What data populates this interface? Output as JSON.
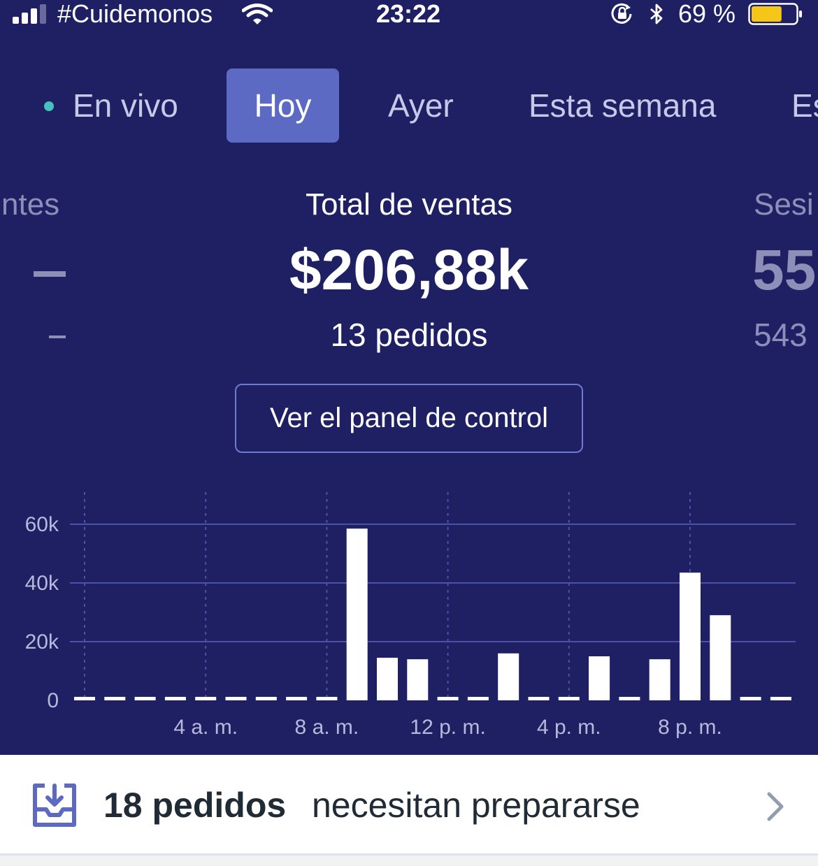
{
  "status_bar": {
    "carrier": "#Cuidemonos",
    "time": "23:22",
    "battery_percent": "69 %",
    "battery_level": 0.69,
    "signal_bars": 3,
    "icons": [
      "signal-icon",
      "wifi-icon",
      "orientation-lock-icon",
      "bluetooth-icon",
      "battery-icon"
    ],
    "colors": {
      "battery_fill": "#f5c518"
    }
  },
  "tabs": [
    {
      "label": "En vivo",
      "active": false
    },
    {
      "label": "Hoy",
      "active": true
    },
    {
      "label": "Ayer",
      "active": false
    },
    {
      "label": "Esta semana",
      "active": false
    },
    {
      "label": "Es",
      "active": false
    }
  ],
  "metrics": {
    "left": {
      "label": "ntes",
      "value": "–",
      "sub": "–"
    },
    "center": {
      "label": "Total de ventas",
      "value": "$206,88k",
      "sub": "13 pedidos"
    },
    "right": {
      "label": "Sesi",
      "value": "55",
      "sub": "543"
    }
  },
  "dashboard_button": {
    "label": "Ver el panel de control"
  },
  "chart_data": {
    "type": "bar",
    "categories": [
      "0",
      "1",
      "2",
      "3",
      "4",
      "5",
      "6",
      "7",
      "8",
      "9",
      "10",
      "11",
      "12",
      "13",
      "14",
      "15",
      "16",
      "17",
      "18",
      "19",
      "20",
      "21",
      "22",
      "23"
    ],
    "values": [
      0,
      0,
      0,
      0,
      0,
      0,
      0,
      0,
      0,
      58500,
      14500,
      14000,
      0,
      0,
      16000,
      0,
      0,
      15000,
      0,
      14000,
      43500,
      29000,
      0,
      0
    ],
    "x_tick_labels": [
      "4 a. m.",
      "8 a. m.",
      "12 p. m.",
      "4 p. m.",
      "8 p. m."
    ],
    "x_tick_hours": [
      4,
      8,
      12,
      16,
      20
    ],
    "y_ticks": [
      0,
      20000,
      40000,
      60000
    ],
    "y_tick_labels": [
      "0",
      "20k",
      "40k",
      "60k"
    ],
    "ylim": [
      0,
      60000
    ],
    "title": "",
    "xlabel": "",
    "ylabel": "",
    "grid": true,
    "colors": {
      "bar": "#ffffff",
      "grid": "#4d52a8",
      "tick_label": "#b7b9da"
    }
  },
  "orders_bar": {
    "count": "18 pedidos",
    "description": "necesitan prepararse",
    "icon": "inbox-tray-icon",
    "chevron": "chevron-right-icon"
  },
  "theme": {
    "background": "#1f1f64",
    "tab_active": "#5c6ac4",
    "live_dot": "#47c1bf"
  }
}
